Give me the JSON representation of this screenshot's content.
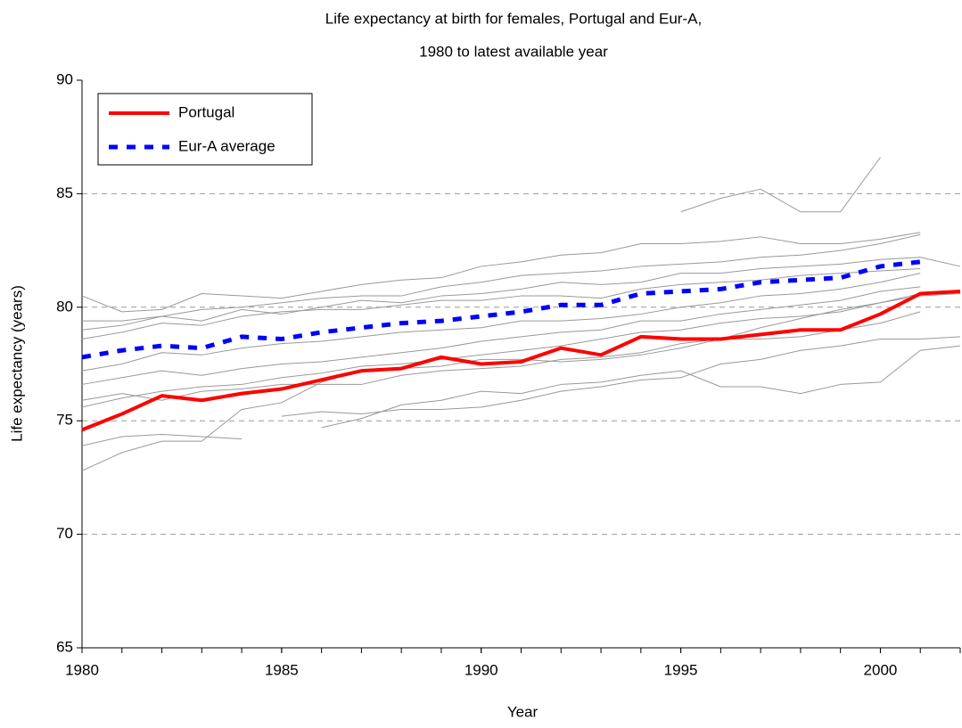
{
  "chart_data": {
    "type": "line",
    "title": [
      "Life expectancy at birth for females, Portugal and Eur-A,",
      "1980 to latest available year"
    ],
    "x_label": "Year",
    "y_label": "Life expectancy (years)",
    "x": [
      1980,
      1981,
      1982,
      1983,
      1984,
      1985,
      1986,
      1987,
      1988,
      1989,
      1990,
      1991,
      1992,
      1993,
      1994,
      1995,
      1996,
      1997,
      1998,
      1999,
      2000,
      2001,
      2002
    ],
    "xlim": [
      1980,
      2002
    ],
    "xticks": [
      1980,
      1985,
      1990,
      1995,
      2000
    ],
    "ylim": [
      65,
      90
    ],
    "yticks": [
      65,
      70,
      75,
      80,
      85,
      90
    ],
    "grid": true,
    "legend": "upper left",
    "series": [
      {
        "color": "#999999",
        "values": [
          80.5,
          79.8,
          79.9,
          80.6,
          80.5,
          80.4,
          80.7,
          81.0,
          81.2,
          81.3,
          81.8,
          82.0,
          82.3,
          82.4,
          82.8,
          82.8,
          82.9,
          83.1,
          82.8,
          82.8,
          83.0,
          83.3,
          null
        ]
      },
      {
        "color": "#999999",
        "values": [
          79.4,
          79.4,
          79.6,
          79.9,
          80.0,
          80.2,
          80.4,
          80.5,
          80.5,
          80.9,
          81.1,
          81.4,
          81.5,
          81.6,
          81.8,
          81.9,
          82.0,
          82.2,
          82.3,
          82.5,
          82.8,
          83.2,
          null
        ]
      },
      {
        "color": "#999999",
        "values": [
          79.0,
          79.2,
          79.6,
          79.4,
          79.9,
          79.7,
          80.0,
          80.3,
          80.2,
          80.5,
          80.6,
          80.8,
          81.1,
          81.0,
          81.1,
          81.5,
          81.5,
          81.7,
          81.8,
          81.9,
          82.1,
          82.2,
          81.8
        ]
      },
      {
        "color": "#999999",
        "values": [
          78.6,
          78.9,
          79.3,
          79.2,
          79.6,
          79.8,
          79.9,
          79.9,
          80.1,
          80.3,
          80.3,
          80.5,
          80.5,
          80.4,
          80.8,
          81.0,
          81.1,
          81.2,
          81.4,
          81.5,
          81.6,
          81.7,
          null
        ]
      },
      {
        "color": "#999999",
        "values": [
          77.2,
          77.5,
          78.0,
          77.9,
          78.2,
          78.4,
          78.5,
          78.7,
          78.9,
          79.0,
          79.1,
          79.4,
          79.4,
          79.5,
          79.7,
          80.0,
          80.2,
          80.5,
          80.6,
          80.8,
          81.1,
          81.5,
          null
        ]
      },
      {
        "color": "#999999",
        "values": [
          76.6,
          76.9,
          77.2,
          77.0,
          77.3,
          77.5,
          77.6,
          77.8,
          78.0,
          78.2,
          78.5,
          78.7,
          78.9,
          79.0,
          79.4,
          79.4,
          79.7,
          79.9,
          80.1,
          80.3,
          80.7,
          80.9,
          null
        ]
      },
      {
        "color": "#999999",
        "values": [
          75.6,
          76.0,
          76.3,
          76.5,
          76.6,
          76.9,
          77.1,
          77.4,
          77.5,
          77.7,
          77.9,
          78.1,
          78.3,
          78.6,
          78.9,
          79.0,
          79.3,
          79.5,
          79.6,
          79.8,
          80.2,
          80.5,
          80.6
        ]
      },
      {
        "color": "#999999",
        "values": [
          75.9,
          76.2,
          75.9,
          76.3,
          76.4,
          76.6,
          76.6,
          76.6,
          77.0,
          77.2,
          77.3,
          77.4,
          77.7,
          77.8,
          78.0,
          78.4,
          78.6,
          78.6,
          78.7,
          79.0,
          79.3,
          79.8,
          null
        ]
      },
      {
        "color": "#999999",
        "values": [
          73.9,
          74.3,
          74.4,
          74.3,
          74.2,
          null,
          null,
          null,
          null,
          null,
          null,
          null,
          null,
          null,
          null,
          null,
          null,
          null,
          null,
          null,
          null,
          null,
          null
        ]
      },
      {
        "color": "#999999",
        "values": [
          72.8,
          73.6,
          74.1,
          74.1,
          75.5,
          75.8,
          76.7,
          77.2,
          77.3,
          77.4,
          77.7,
          77.7,
          77.6,
          77.7,
          77.9,
          78.2,
          78.6,
          79.1,
          79.5,
          79.9,
          80.2,
          80.6,
          null
        ]
      },
      {
        "color": "#999999",
        "values": [
          null,
          null,
          null,
          null,
          null,
          null,
          null,
          null,
          null,
          null,
          null,
          null,
          null,
          null,
          null,
          84.2,
          84.8,
          85.2,
          84.2,
          84.2,
          86.6,
          null,
          null
        ]
      },
      {
        "color": "#999999",
        "values": [
          null,
          null,
          null,
          null,
          null,
          75.2,
          75.4,
          75.3,
          75.5,
          75.5,
          75.6,
          75.9,
          76.3,
          76.5,
          76.8,
          76.9,
          77.5,
          77.7,
          78.1,
          78.3,
          78.6,
          78.6,
          78.7
        ]
      },
      {
        "color": "#999999",
        "values": [
          null,
          null,
          null,
          null,
          null,
          null,
          74.7,
          75.1,
          75.7,
          75.9,
          76.3,
          76.2,
          76.6,
          76.7,
          77.0,
          77.2,
          76.5,
          76.5,
          76.2,
          76.6,
          76.7,
          78.1,
          78.3
        ]
      },
      {
        "name": "Portugal",
        "color": "#ff0000",
        "values": [
          74.6,
          75.3,
          76.1,
          75.9,
          76.2,
          76.4,
          76.8,
          77.2,
          77.3,
          77.8,
          77.5,
          77.6,
          78.2,
          77.9,
          78.7,
          78.6,
          78.6,
          78.8,
          79.0,
          79.0,
          79.7,
          80.6,
          80.7
        ]
      },
      {
        "name": "Eur-A average",
        "color": "#0000ff",
        "dashed": true,
        "values": [
          77.8,
          78.1,
          78.3,
          78.2,
          78.7,
          78.6,
          78.9,
          79.1,
          79.3,
          79.4,
          79.6,
          79.8,
          80.1,
          80.1,
          80.6,
          80.7,
          80.8,
          81.1,
          81.2,
          81.3,
          81.8,
          82.0,
          null
        ]
      }
    ]
  }
}
